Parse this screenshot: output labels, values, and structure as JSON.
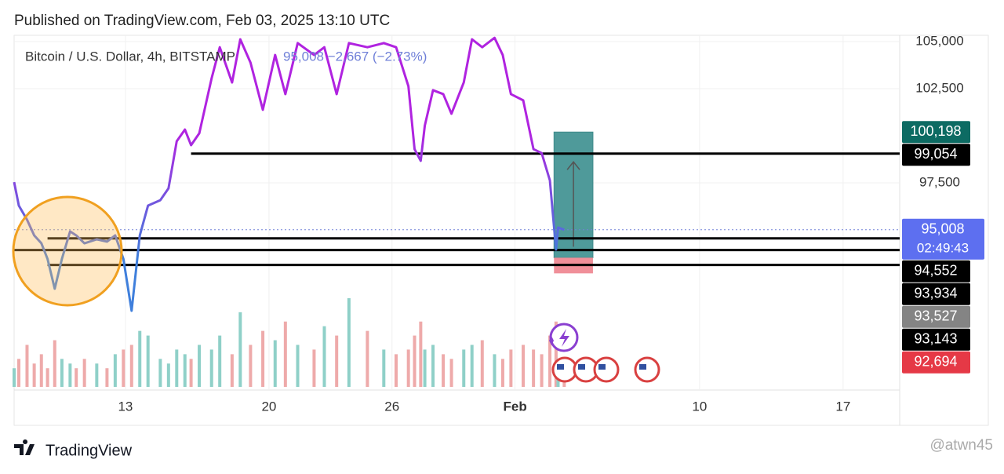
{
  "chart_data": {
    "type": "line",
    "title": "Published on TradingView.com, Feb 03, 2025 13:10 UTC",
    "subtitle": "Bitcoin / U.S. Dollar, 4h, BITSTAMP",
    "quote": "95,008 −2,667 (−2.73%)",
    "brand": "TradingView",
    "watermark": "@atwn45",
    "xlim": [
      7.57,
      50.76
    ],
    "xticks": [
      13,
      20,
      26,
      {
        "value": 32,
        "label": "Feb"
      },
      {
        "value": 41,
        "label": "10"
      },
      {
        "value": 48,
        "label": "17"
      }
    ],
    "ylim": [
      86700,
      105300
    ],
    "yticks": [
      {
        "value": 97500,
        "label": "97,500"
      },
      {
        "value": 102500,
        "label": "102,500"
      },
      {
        "value": 105000,
        "label": "105,000"
      }
    ],
    "grid": true,
    "series": [
      {
        "name": "Bitcoin / U.S. Dollar",
        "gradient": [
          "#b023e0",
          "#3f7fdc"
        ],
        "x": [
          7.57,
          7.8,
          8.2,
          8.55,
          8.9,
          9.2,
          9.55,
          9.9,
          10.3,
          10.6,
          11,
          11.6,
          12.1,
          12.5,
          12.9,
          13.3,
          13.7,
          14.1,
          14.7,
          15.1,
          15.5,
          15.9,
          16.2,
          16.6,
          17.2,
          17.6,
          18.2,
          18.6,
          19.1,
          19.7,
          20.3,
          20.8,
          21.4,
          22.2,
          22.7,
          23.3,
          23.9,
          24.8,
          25.6,
          26.2,
          26.8,
          27.1,
          27.4,
          27.6,
          28,
          28.5,
          28.9,
          29.5,
          29.9,
          30.4,
          31,
          31.4,
          31.8,
          32.4,
          32.9,
          33.3,
          33.7,
          34,
          34.1,
          34.4
        ],
        "values": [
          97540,
          96290,
          95540,
          94710,
          94290,
          93460,
          91880,
          93460,
          94920,
          94710,
          94290,
          94500,
          94380,
          94710,
          93460,
          90710,
          94710,
          96290,
          96580,
          97210,
          99710,
          100330,
          99500,
          100130,
          103040,
          104700,
          102830,
          105120,
          103880,
          101380,
          104290,
          102210,
          104920,
          104290,
          104700,
          102210,
          104920,
          104700,
          104920,
          104700,
          102630,
          99290,
          98670,
          100540,
          102420,
          102210,
          101170,
          102830,
          105120,
          104700,
          105200,
          104290,
          102210,
          101880,
          99290,
          99080,
          97630,
          93960,
          95130,
          95008
        ]
      }
    ],
    "volume": {
      "up_color": "#8fd0c8",
      "down_color": "#eeaaaa",
      "values": [
        20,
        30,
        45,
        25,
        35,
        20,
        50,
        30,
        25,
        20,
        30,
        25,
        20,
        35,
        40,
        45,
        60,
        55,
        30,
        25,
        40,
        35,
        30,
        45,
        40,
        55,
        35,
        80,
        45,
        60,
        50,
        70,
        45,
        40,
        65,
        55,
        95,
        60,
        40,
        35,
        40,
        55,
        70,
        40,
        45,
        35,
        30,
        40,
        45,
        50,
        35,
        30,
        40,
        45,
        40,
        35,
        55,
        70,
        30,
        25
      ]
    },
    "levels": [
      {
        "value": 99054,
        "x0": 16.2
      },
      {
        "value": 94552,
        "x0": 9.2
      },
      {
        "value": 93934,
        "x0": 7.57
      },
      {
        "value": 93143,
        "x0": 9.2
      }
    ],
    "position": {
      "entry": 93527,
      "target": 100198,
      "stop": 92694,
      "x0": 33.9,
      "x1": 35.8,
      "profit_color": "#4f9a9a",
      "loss_color": "#f08f99"
    },
    "last_price": 95008,
    "countdown": "02:49:43",
    "tags": [
      {
        "value": 100198,
        "label": "100,198",
        "color": "#0d6b63"
      },
      {
        "value": 99054,
        "label": "99,054",
        "color": "#000000"
      },
      {
        "value": 95008,
        "label": "95,008",
        "color": "#5d6ff0"
      },
      {
        "value": 94552,
        "label": "94,552",
        "color": "#000000"
      },
      {
        "value": 93934,
        "label": "93,934",
        "color": "#000000"
      },
      {
        "value": 93527,
        "label": "93,527",
        "color": "#848484"
      },
      {
        "value": 93143,
        "label": "93,143",
        "color": "#000000"
      },
      {
        "value": 92694,
        "label": "92,694",
        "color": "#e53946"
      }
    ]
  }
}
